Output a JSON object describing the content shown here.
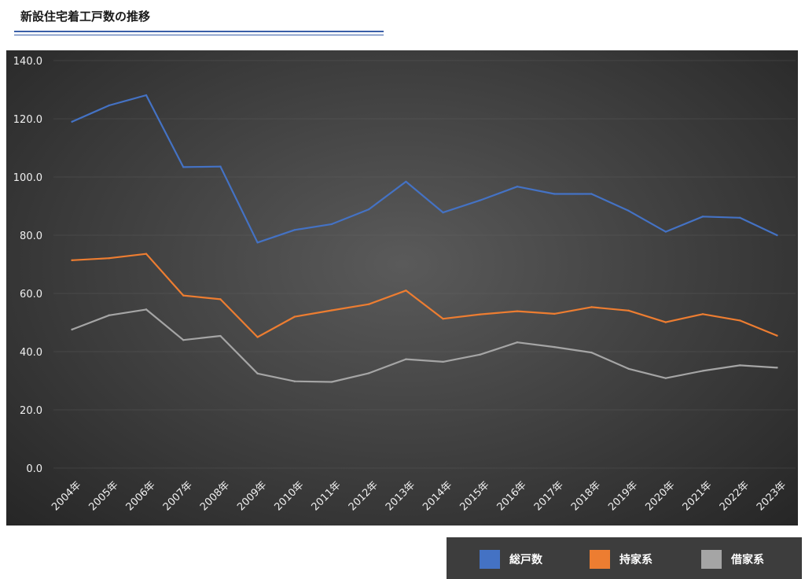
{
  "page": {
    "title": "新設住宅着工戸数の推移"
  },
  "colors": {
    "total": "#4472c4",
    "owner": "#ed7d31",
    "rental": "#a5a5a5"
  },
  "chart_data": {
    "type": "line",
    "title": "",
    "xlabel": "",
    "ylabel": "",
    "ylim": [
      0,
      140
    ],
    "yticks": [
      "0.0",
      "20.0",
      "40.0",
      "60.0",
      "80.0",
      "100.0",
      "120.0",
      "140.0"
    ],
    "grid": true,
    "legend_position": "bottom-right",
    "categories": [
      "2004年",
      "2005年",
      "2006年",
      "2007年",
      "2008年",
      "2009年",
      "2010年",
      "2011年",
      "2012年",
      "2013年",
      "2014年",
      "2015年",
      "2016年",
      "2017年",
      "2018年",
      "2019年",
      "2020年",
      "2021年",
      "2022年",
      "2023年"
    ],
    "series": [
      {
        "name": "総戸数",
        "color": "#4472c4",
        "values": [
          119.0,
          124.6,
          128.1,
          103.4,
          103.6,
          77.5,
          81.8,
          83.8,
          88.9,
          98.4,
          87.8,
          92.0,
          96.7,
          94.2,
          94.2,
          88.4,
          81.2,
          86.4,
          86.0,
          80.0
        ]
      },
      {
        "name": "持家系",
        "color": "#ed7d31",
        "values": [
          71.4,
          72.1,
          73.6,
          59.3,
          58.0,
          45.0,
          52.0,
          54.2,
          56.3,
          61.0,
          51.3,
          52.8,
          53.9,
          53.0,
          55.3,
          54.1,
          50.1,
          52.9,
          50.7,
          45.5
        ]
      },
      {
        "name": "借家系",
        "color": "#a5a5a5",
        "values": [
          47.6,
          52.5,
          54.5,
          44.0,
          45.4,
          32.5,
          29.8,
          29.6,
          32.6,
          37.4,
          36.5,
          39.0,
          43.2,
          41.6,
          39.7,
          34.1,
          30.9,
          33.4,
          35.3,
          34.5
        ]
      }
    ]
  }
}
